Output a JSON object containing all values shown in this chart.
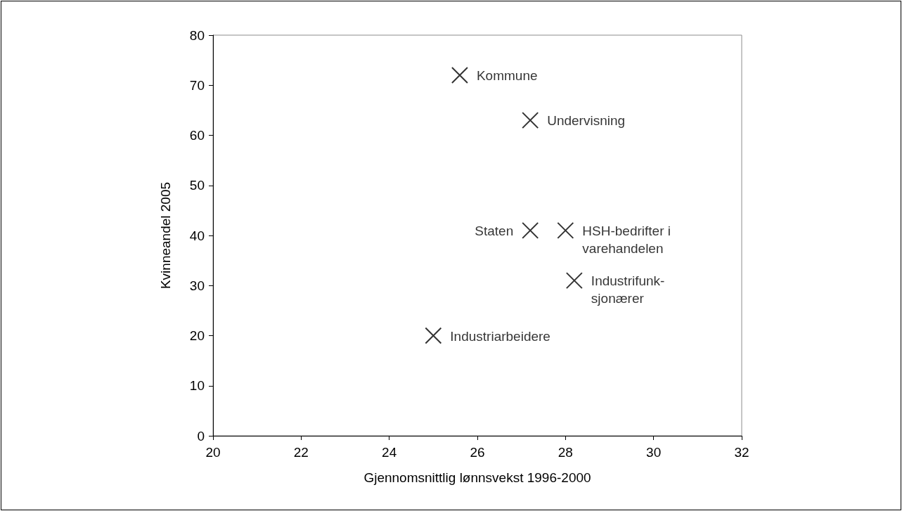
{
  "chart_data": {
    "type": "scatter",
    "xlabel": "Gjennomsnittlig lønnsvekst 1996-2000",
    "ylabel": "Kvinneandel 2005",
    "x": [
      25.6,
      27.2,
      27.2,
      28.0,
      28.2,
      25.0
    ],
    "values": [
      72,
      63,
      41,
      41,
      31,
      20
    ],
    "color": "#000000",
    "marker": "cross",
    "grid": false,
    "xlim": [
      20,
      32
    ],
    "xticks": [
      20,
      22,
      24,
      26,
      28,
      30,
      32
    ],
    "ylim": [
      0,
      80
    ],
    "yticks": [
      0,
      10,
      20,
      30,
      40,
      50,
      60,
      70,
      80
    ],
    "annotations": [
      {
        "text": "Kommune",
        "x": 25.6,
        "y": 72
      },
      {
        "text": "Undervisning",
        "x": 27.2,
        "y": 63
      },
      {
        "text": "Staten",
        "x": 27.2,
        "y": 41
      },
      {
        "text": "HSH-bedrifter i\nvarehandelen",
        "x": 28.0,
        "y": 41
      },
      {
        "text": "Industrifunk-\nsjonærer",
        "x": 28.2,
        "y": 31
      },
      {
        "text": "Industriarbeidere",
        "x": 25.0,
        "y": 20
      }
    ]
  }
}
